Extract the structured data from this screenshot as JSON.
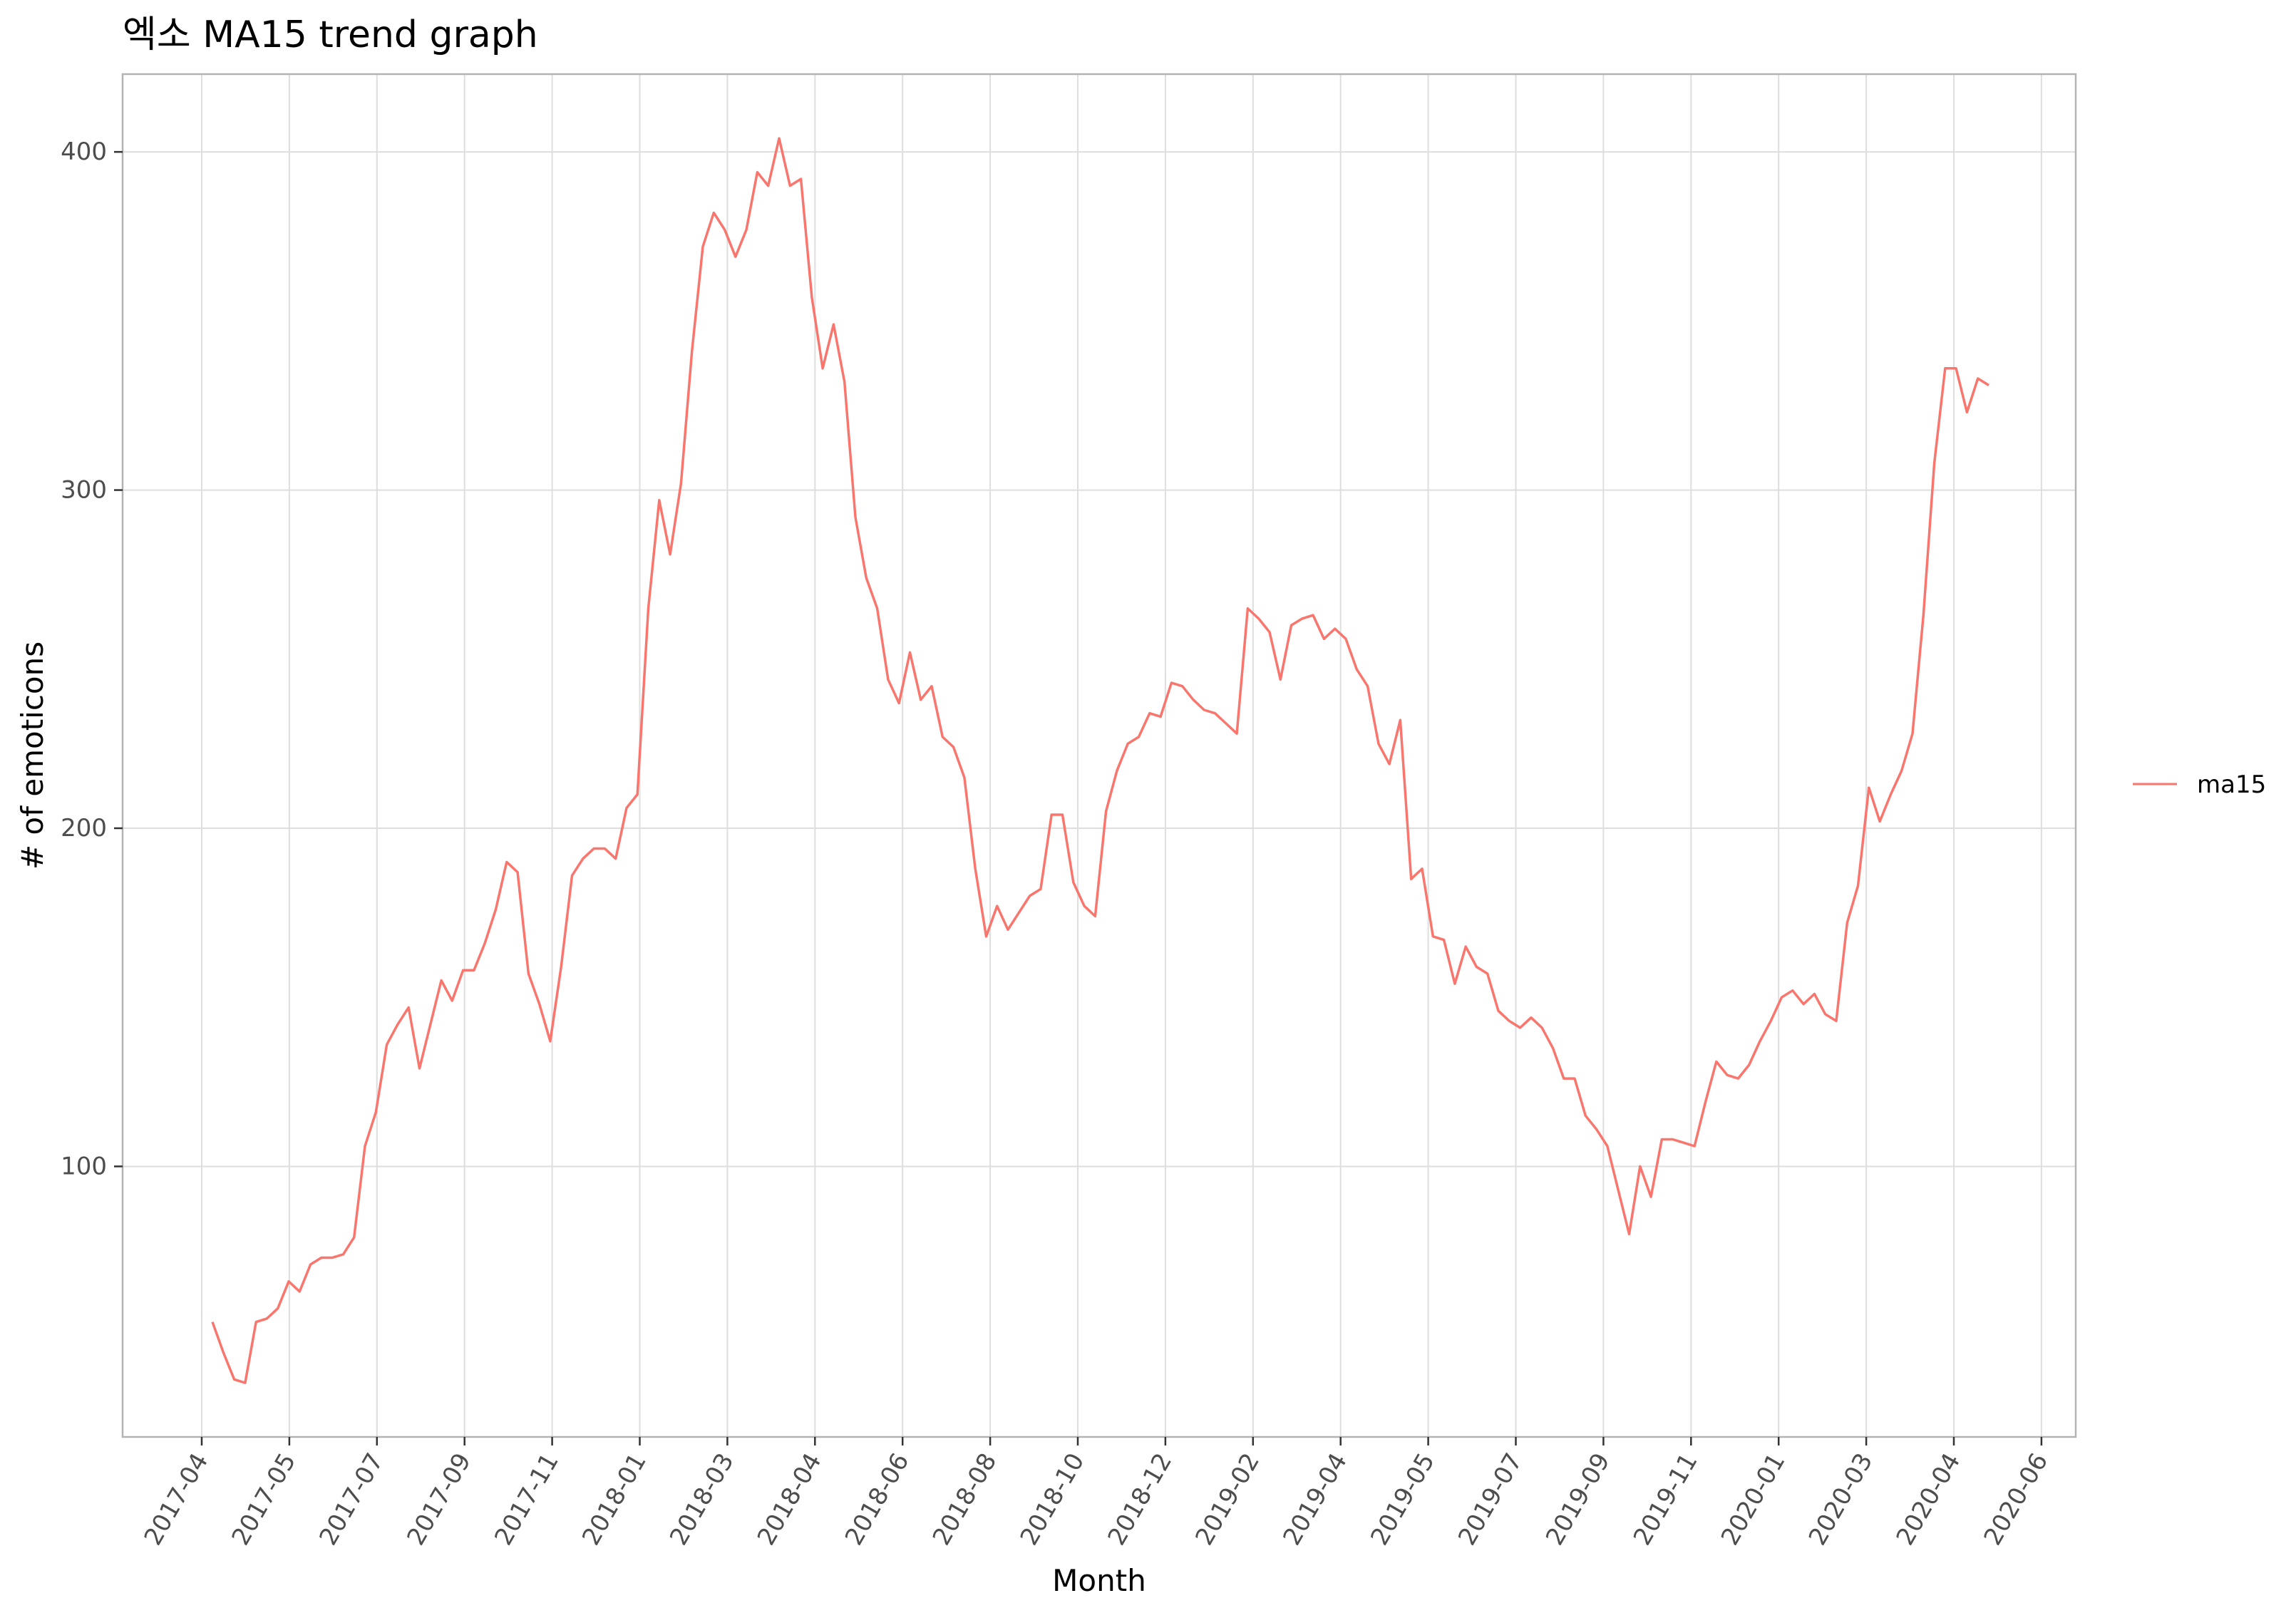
{
  "chart_data": {
    "type": "line",
    "title": "엑소 MA15 trend graph",
    "xlabel": "Month",
    "ylabel": "# of emoticons",
    "x_tick_labels": [
      "2017-04",
      "2017-05",
      "2017-07",
      "2017-09",
      "2017-11",
      "2018-01",
      "2018-03",
      "2018-04",
      "2018-06",
      "2018-08",
      "2018-10",
      "2018-12",
      "2019-02",
      "2019-04",
      "2019-05",
      "2019-07",
      "2019-09",
      "2019-11",
      "2020-01",
      "2020-03",
      "2020-04",
      "2020-06"
    ],
    "y_ticks": [
      100,
      200,
      300,
      400
    ],
    "ylim": [
      20,
      423
    ],
    "grid": true,
    "legend_position": "right",
    "colors": {
      "series": "#f8766d",
      "grid": "#dedede",
      "panel_border": "#b3b3b3"
    },
    "series": [
      {
        "name": "ma15",
        "values": [
          54,
          45,
          37,
          36,
          54,
          55,
          58,
          66,
          63,
          71,
          73,
          73,
          74,
          79,
          106,
          116,
          136,
          142,
          147,
          129,
          142,
          155,
          149,
          158,
          158,
          166,
          176,
          190,
          187,
          157,
          148,
          137,
          159,
          186,
          191,
          194,
          194,
          191,
          206,
          210,
          265,
          297,
          281,
          302,
          341,
          372,
          382,
          377,
          369,
          377,
          394,
          390,
          404,
          390,
          392,
          357,
          336,
          349,
          332,
          292,
          274,
          265,
          244,
          237,
          252,
          238,
          242,
          227,
          224,
          215,
          188,
          168,
          177,
          170,
          175,
          180,
          182,
          204,
          204,
          184,
          177,
          174,
          205,
          217,
          225,
          227,
          234,
          233,
          243,
          242,
          238,
          235,
          234,
          231,
          228,
          265,
          262,
          258,
          244,
          260,
          262,
          263,
          256,
          259,
          256,
          247,
          242,
          225,
          219,
          232,
          185,
          188,
          168,
          167,
          154,
          165,
          159,
          157,
          146,
          143,
          141,
          144,
          141,
          135,
          126,
          126,
          115,
          111,
          106,
          93,
          80,
          100,
          91,
          108,
          108,
          107,
          106,
          119,
          131,
          127,
          126,
          130,
          137,
          143,
          150,
          152,
          148,
          151,
          145,
          143,
          172,
          183,
          212,
          202,
          210,
          217,
          228,
          263,
          308,
          336,
          336,
          323,
          333,
          331
        ]
      }
    ]
  }
}
